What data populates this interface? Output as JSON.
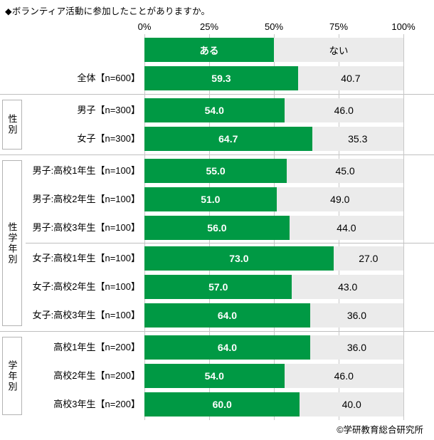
{
  "title": "◆ボランティア活動に参加したことがありますか。",
  "footer": "©学研教育総合研究所",
  "colors": {
    "yes_bar": "#009944",
    "no_bar": "#ebebeb",
    "gridline": "#c7c7c7",
    "divider": "#bfbfbf"
  },
  "chart_data": {
    "type": "bar",
    "orientation": "horizontal",
    "stacked": true,
    "unit": "%",
    "xlim": [
      0,
      100
    ],
    "grid": true,
    "axis_ticks": [
      "0%",
      "25%",
      "50%",
      "75%",
      "100%"
    ],
    "legend_position": "top",
    "legend": [
      {
        "name": "ある",
        "color": "#009944"
      },
      {
        "name": "ない",
        "color": "#ebebeb"
      }
    ],
    "groups": [
      {
        "label": "",
        "rows": [
          {
            "category": "全体【n=600】",
            "values": [
              59.3,
              40.7
            ]
          }
        ]
      },
      {
        "label": "性別",
        "rows": [
          {
            "category": "男子【n=300】",
            "values": [
              54.0,
              46.0
            ]
          },
          {
            "category": "女子【n=300】",
            "values": [
              64.7,
              35.3
            ]
          }
        ]
      },
      {
        "label": "性学年別",
        "divider_after_row": 3,
        "rows": [
          {
            "category": "男子:高校1年生【n=100】",
            "values": [
              55.0,
              45.0
            ]
          },
          {
            "category": "男子:高校2年生【n=100】",
            "values": [
              51.0,
              49.0
            ]
          },
          {
            "category": "男子:高校3年生【n=100】",
            "values": [
              56.0,
              44.0
            ]
          },
          {
            "category": "女子:高校1年生【n=100】",
            "values": [
              73.0,
              27.0
            ]
          },
          {
            "category": "女子:高校2年生【n=100】",
            "values": [
              57.0,
              43.0
            ]
          },
          {
            "category": "女子:高校3年生【n=100】",
            "values": [
              64.0,
              36.0
            ]
          }
        ]
      },
      {
        "label": "学年別",
        "rows": [
          {
            "category": "高校1年生【n=200】",
            "values": [
              64.0,
              36.0
            ]
          },
          {
            "category": "高校2年生【n=200】",
            "values": [
              54.0,
              46.0
            ]
          },
          {
            "category": "高校3年生【n=200】",
            "values": [
              60.0,
              40.0
            ]
          }
        ]
      }
    ]
  }
}
